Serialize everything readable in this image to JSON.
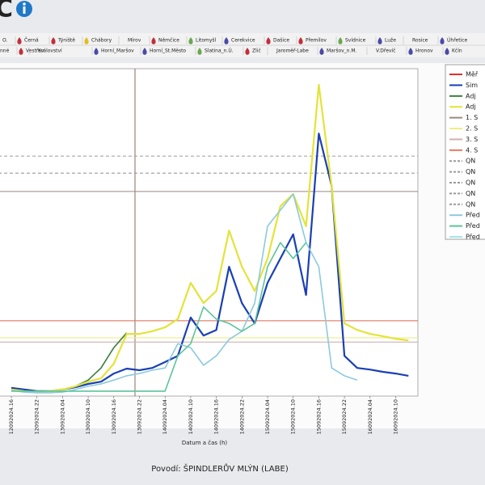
{
  "logo": "C",
  "tabs": [
    [
      {
        "label": "O.",
        "icon": null
      },
      {
        "label": "Černá",
        "icon": "#c0303a"
      },
      {
        "label": "Týniště",
        "icon": "#c0303a"
      },
      {
        "label": "Chábory",
        "icon": "#e0c020"
      },
      {
        "label": "Mírov",
        "icon": null
      },
      {
        "label": "Němčice",
        "icon": "#c0303a"
      },
      {
        "label": "Litomyšl",
        "icon": "#6aa84f"
      },
      {
        "label": "Cerekvice",
        "icon": "#4a4aa8"
      },
      {
        "label": "Dašice",
        "icon": "#c0303a"
      },
      {
        "label": "Přemilov",
        "icon": "#c0303a"
      },
      {
        "label": "Svídnice",
        "icon": "#6aa84f"
      },
      {
        "label": "Luže",
        "icon": "#4a4aa8"
      },
      {
        "label": "Rosice",
        "icon": null
      },
      {
        "label": "Úhřetice",
        "icon": "#4a4aa8"
      }
    ],
    [
      {
        "label": "nné",
        "icon": null
      },
      {
        "label": "Vestřev",
        "icon": "#c0303a"
      },
      {
        "label": "Království",
        "icon": null
      },
      {
        "label": "Horní_Maršov",
        "icon": "#4a4aa8"
      },
      {
        "label": "Horní_St.Město",
        "icon": "#4a4aa8"
      },
      {
        "label": "Slatina_n.Ú.",
        "icon": "#6aa84f"
      },
      {
        "label": "Zlič",
        "icon": "#c0303a"
      },
      {
        "label": "Jaroměř-Labe",
        "icon": null
      },
      {
        "label": "Maršov_n.M.",
        "icon": "#4a4aa8"
      },
      {
        "label": "V.Dřevíč",
        "icon": null
      },
      {
        "label": "Hronov",
        "icon": "#4a4aa8"
      },
      {
        "label": "Kčín",
        "icon": "#4a4aa8"
      }
    ]
  ],
  "chart_data": {
    "type": "line",
    "x_label": "Datum a čas (h)",
    "categories": [
      "12092024.16",
      null,
      "12092024.22",
      null,
      "13092024.04",
      null,
      "13092024.10",
      null,
      "13092024.16",
      null,
      "13092024.22",
      null,
      "14092024.04",
      null,
      "14092024.10",
      null,
      "14092024.16",
      null,
      "14092024.22",
      null,
      "15092024.04",
      null,
      "15092024.10",
      null,
      "15092024.16",
      null,
      "15092024.22",
      null,
      "16092024.04",
      null,
      "16092024.10",
      null
    ],
    "ylim": [
      0,
      100
    ],
    "legend": "right",
    "series": [
      {
        "name": "Měř",
        "color": "#e03030"
      },
      {
        "name": "Sim",
        "color": "#1a3fb5",
        "values": [
          2.5,
          2,
          1.5,
          1.5,
          2,
          2.7,
          3.7,
          4.4,
          6.9,
          8.4,
          7.9,
          8.6,
          10.4,
          12.3,
          24,
          18.5,
          20.2,
          39.5,
          28.4,
          22.2,
          34.6,
          42,
          49.4,
          30.9,
          80.2,
          64.2,
          12.3,
          8.6,
          8.1,
          7.4,
          6.9,
          6.2
        ]
      },
      {
        "name": "Adj",
        "color": "#3a7d3a",
        "values": [
          2,
          1.5,
          1.2,
          1.5,
          2,
          3,
          4.9,
          8.6,
          14.8,
          19.3,
          null,
          null,
          null,
          null,
          null,
          null,
          null,
          null,
          null,
          null,
          null,
          null,
          null,
          null,
          null,
          null,
          null,
          null,
          null,
          null,
          null,
          null
        ]
      },
      {
        "name": "Adj",
        "color": "#e3e33a",
        "values": [
          2,
          1.5,
          1.2,
          1.5,
          2,
          3,
          4.4,
          5.4,
          9.9,
          19,
          19,
          19.8,
          21,
          23.5,
          34.6,
          28.4,
          32.1,
          50.6,
          39.5,
          32.1,
          42,
          58,
          61.7,
          51.9,
          95.1,
          64.2,
          22.2,
          20.2,
          19,
          18.3,
          17.5,
          17
        ]
      },
      {
        "name": "1. S",
        "color": "#9a8a80",
        "level": 62.5
      },
      {
        "name": "2. S",
        "color": "#eeee88",
        "level": 17.8
      },
      {
        "name": "3. S",
        "color": "#d0b0b0",
        "level": 16.5
      },
      {
        "name": "4. S",
        "color": "#e07a60",
        "level": 23
      },
      {
        "name": "QN",
        "color": "#9a9a9a",
        "dash": true,
        "level": 73.3
      },
      {
        "name": "QN",
        "color": "#9a9a9a",
        "dash": true,
        "level": 68.1
      },
      {
        "name": "QN",
        "color": "#9a9a9a",
        "dash": true
      },
      {
        "name": "QN",
        "color": "#9a9a9a",
        "dash": true
      },
      {
        "name": "QN",
        "color": "#9a9a9a",
        "dash": true
      },
      {
        "name": "Před",
        "color": "#8ccadb",
        "values": [
          1.7,
          1.2,
          1,
          1,
          1.2,
          2,
          3,
          3.7,
          4.9,
          6.2,
          6.9,
          7.9,
          8.6,
          16,
          14.8,
          9.4,
          12.3,
          17.3,
          19.8,
          28.4,
          51.9,
          56.8,
          61.7,
          46.9,
          39.5,
          8.6,
          6.2,
          4.9,
          null,
          null,
          null,
          null
        ]
      },
      {
        "name": "Před",
        "color": "#5cc49a",
        "values": [
          1.5,
          1.5,
          1.5,
          1.5,
          1.5,
          1.5,
          1.5,
          1.5,
          1.5,
          1.5,
          1.5,
          1.5,
          1.5,
          12.3,
          16,
          27.2,
          23.5,
          22.2,
          19.8,
          22.2,
          39.5,
          46.9,
          42,
          46.9,
          null,
          null,
          null,
          null,
          null,
          null,
          null,
          null
        ]
      },
      {
        "name": "Před",
        "color": "#a8e4e4"
      }
    ]
  },
  "footer": "Povodí: ŠPINDLERŮV MLÝN (LABE)"
}
